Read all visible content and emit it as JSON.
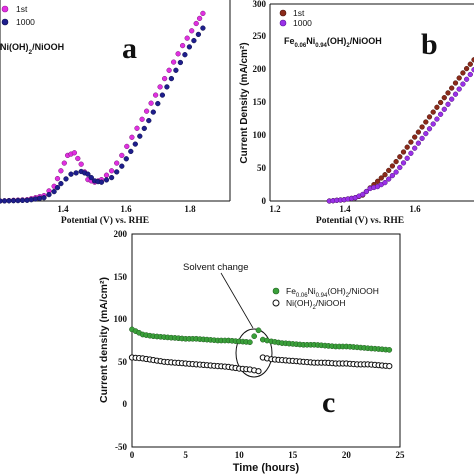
{
  "colors": {
    "magenta": "#e030e0",
    "navy": "#1e1e8c",
    "brown": "#8b2a1a",
    "purple": "#9a30e8",
    "green": "#3aa03a",
    "black": "#111111"
  },
  "chart_data": [
    {
      "panel": "a",
      "type": "scatter",
      "panel_letter": "a",
      "catalyst_label": "Ni(OH)2/NiOOH",
      "xlabel": "Potential (V) vs. RHE",
      "xlim": [
        1.22,
        1.9
      ],
      "ylim": [
        0,
        300
      ],
      "x_ticks": [
        "1.4",
        "1.6",
        "1.8"
      ],
      "legend": [
        "1st",
        "1000"
      ],
      "series": [
        {
          "name": "1st",
          "color": "#e030e0",
          "x": [
            1.22,
            1.3,
            1.35,
            1.38,
            1.4,
            1.42,
            1.44,
            1.46,
            1.48,
            1.5,
            1.52,
            1.55,
            1.58,
            1.61,
            1.64,
            1.68,
            1.72,
            1.76,
            1.8,
            1.82
          ],
          "y": [
            0,
            2,
            8,
            22,
            45,
            68,
            72,
            55,
            32,
            28,
            32,
            45,
            68,
            95,
            122,
            158,
            195,
            232,
            265,
            280
          ]
        },
        {
          "name": "1000",
          "color": "#1e1e8c",
          "x": [
            1.22,
            1.3,
            1.35,
            1.38,
            1.4,
            1.43,
            1.46,
            1.48,
            1.5,
            1.52,
            1.55,
            1.58,
            1.62,
            1.66,
            1.7,
            1.74,
            1.78,
            1.82
          ],
          "y": [
            0,
            1,
            5,
            14,
            26,
            40,
            44,
            40,
            30,
            28,
            35,
            52,
            85,
            120,
            158,
            195,
            230,
            258
          ]
        }
      ]
    },
    {
      "panel": "b",
      "type": "scatter",
      "panel_letter": "b",
      "catalyst_label": "Fe0.06Ni0.94(OH)2/NiOOH",
      "xlabel": "Potential (V) vs. RHE",
      "ylabel": "Current Density (mA/cm²)",
      "xlim": [
        1.2,
        1.75
      ],
      "ylim": [
        0,
        300
      ],
      "x_ticks": [
        "1.2",
        "1.4",
        "1.6"
      ],
      "y_ticks": [
        "0",
        "50",
        "100",
        "150",
        "200",
        "250",
        "300"
      ],
      "legend": [
        "1st",
        "1000"
      ],
      "series": [
        {
          "name": "1st",
          "color": "#8b2a1a",
          "x": [
            1.36,
            1.4,
            1.43,
            1.45,
            1.47,
            1.49,
            1.51,
            1.54,
            1.57,
            1.6,
            1.63,
            1.66,
            1.69,
            1.72,
            1.75
          ],
          "y": [
            0,
            2,
            5,
            9,
            20,
            30,
            40,
            60,
            82,
            105,
            128,
            150,
            172,
            195,
            215
          ]
        },
        {
          "name": "1000",
          "color": "#9a30e8",
          "x": [
            1.36,
            1.4,
            1.43,
            1.45,
            1.47,
            1.49,
            1.51,
            1.54,
            1.57,
            1.6,
            1.63,
            1.66,
            1.69,
            1.72,
            1.75
          ],
          "y": [
            0,
            2,
            5,
            10,
            19,
            22,
            28,
            44,
            65,
            88,
            110,
            132,
            155,
            178,
            200
          ]
        }
      ]
    },
    {
      "panel": "c",
      "type": "scatter",
      "panel_letter": "c",
      "annotation": "Solvent change",
      "xlabel": "Time (hours)",
      "ylabel": "Current density (mA/cm²)",
      "xlim": [
        0,
        25
      ],
      "ylim": [
        -50,
        200
      ],
      "x_ticks": [
        "0",
        "5",
        "10",
        "15",
        "20",
        "25"
      ],
      "y_ticks": [
        "-50",
        "0",
        "50",
        "100",
        "150",
        "200"
      ],
      "legend": [
        "Fe0.06Ni0.94(OH)2/NiOOH",
        "Ni(OH)2/NiOOH"
      ],
      "series": [
        {
          "name": "Fe0.06Ni0.94(OH)2/NiOOH",
          "color": "#3aa03a",
          "x": [
            0,
            1,
            2,
            3,
            4,
            5,
            6,
            7,
            8,
            9,
            10,
            11,
            11.8,
            12.2,
            13,
            14,
            15,
            16,
            17,
            18,
            19,
            20,
            21,
            22,
            23,
            24
          ],
          "y": [
            88,
            82,
            80,
            79,
            78,
            77,
            77,
            76,
            75,
            75,
            74,
            73,
            87,
            76,
            74,
            72,
            71,
            70,
            70,
            69,
            68,
            68,
            67,
            66,
            65,
            64
          ]
        },
        {
          "name": "Ni(OH)2/NiOOH",
          "color": "#111111",
          "x": [
            0,
            1,
            2,
            3,
            4,
            5,
            6,
            7,
            8,
            9,
            10,
            11,
            11.8,
            12.2,
            13,
            14,
            15,
            16,
            17,
            18,
            19,
            20,
            21,
            22,
            23,
            24
          ],
          "y": [
            55,
            54,
            52,
            50,
            49,
            48,
            47,
            46,
            45,
            44,
            42,
            41,
            39,
            55,
            53,
            52,
            51,
            50,
            49,
            49,
            48,
            48,
            47,
            47,
            46,
            45
          ]
        }
      ]
    }
  ]
}
